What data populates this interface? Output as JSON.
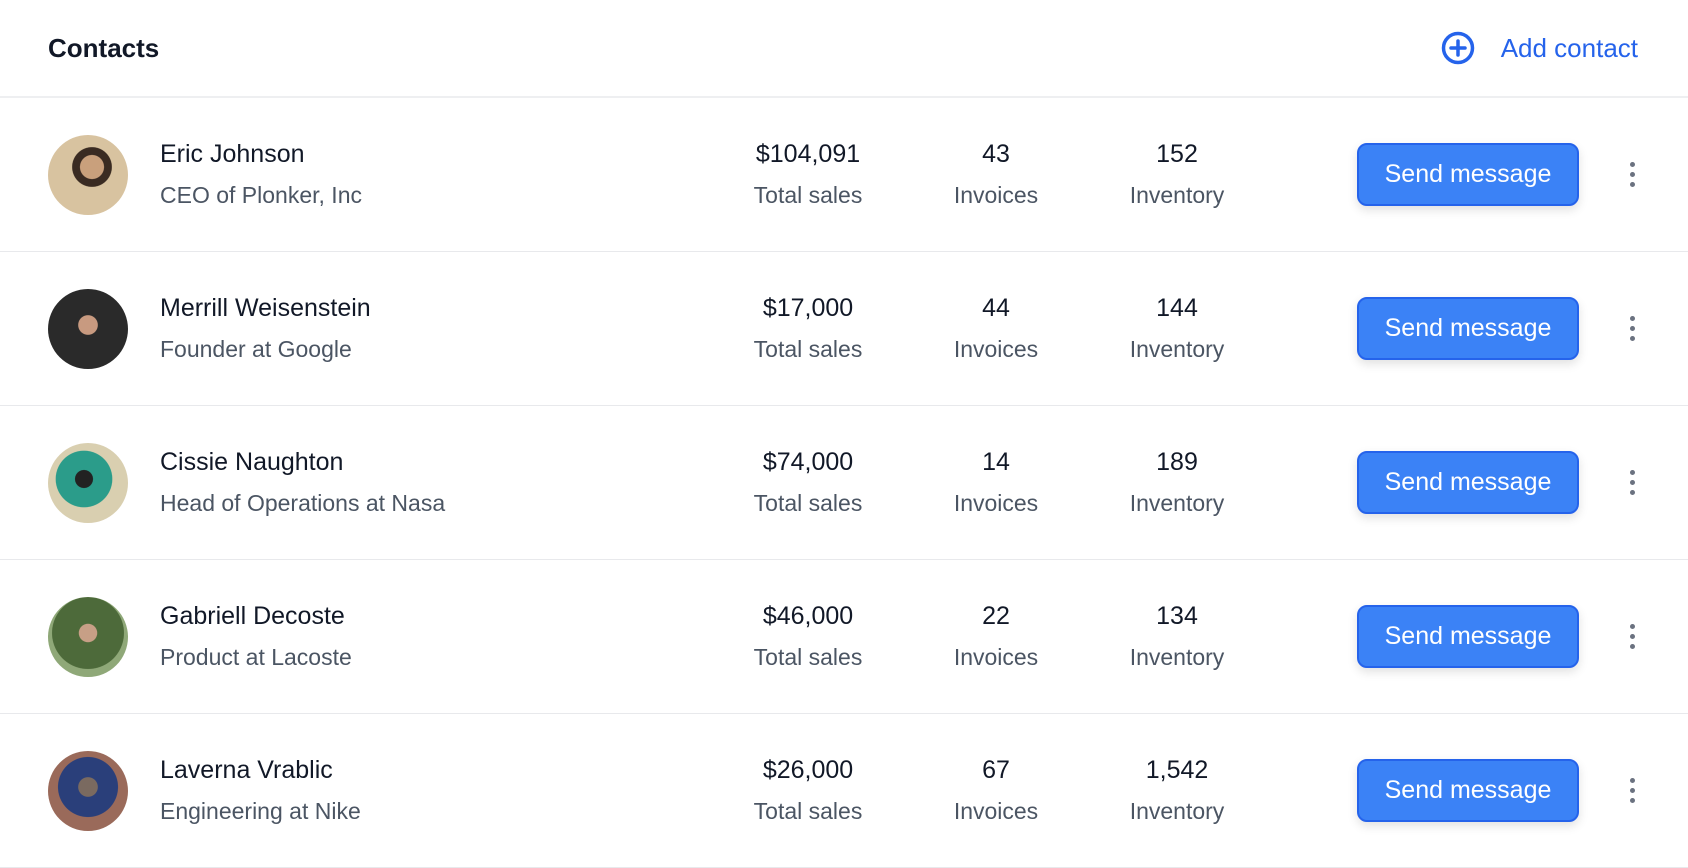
{
  "header": {
    "title": "Contacts",
    "add_label": "Add contact",
    "add_icon": "plus-circle-icon",
    "accent": "#2563eb"
  },
  "labels": {
    "sales": "Total sales",
    "invoices": "Invoices",
    "inventory": "Inventory",
    "send": "Send message"
  },
  "contacts": [
    {
      "name": "Eric Johnson",
      "role": "CEO of Plonker, Inc",
      "sales": "$104,091",
      "invoices": "43",
      "inventory": "152"
    },
    {
      "name": "Merrill Weisenstein",
      "role": "Founder at Google",
      "sales": "$17,000",
      "invoices": "44",
      "inventory": "144"
    },
    {
      "name": "Cissie Naughton",
      "role": "Head of Operations at Nasa",
      "sales": "$74,000",
      "invoices": "14",
      "inventory": "189"
    },
    {
      "name": "Gabriell Decoste",
      "role": "Product at Lacoste",
      "sales": "$46,000",
      "invoices": "22",
      "inventory": "134"
    },
    {
      "name": "Laverna Vrablic",
      "role": "Engineering at Nike",
      "sales": "$26,000",
      "invoices": "67",
      "inventory": "1,542"
    }
  ],
  "button_color": "#3b82f6"
}
